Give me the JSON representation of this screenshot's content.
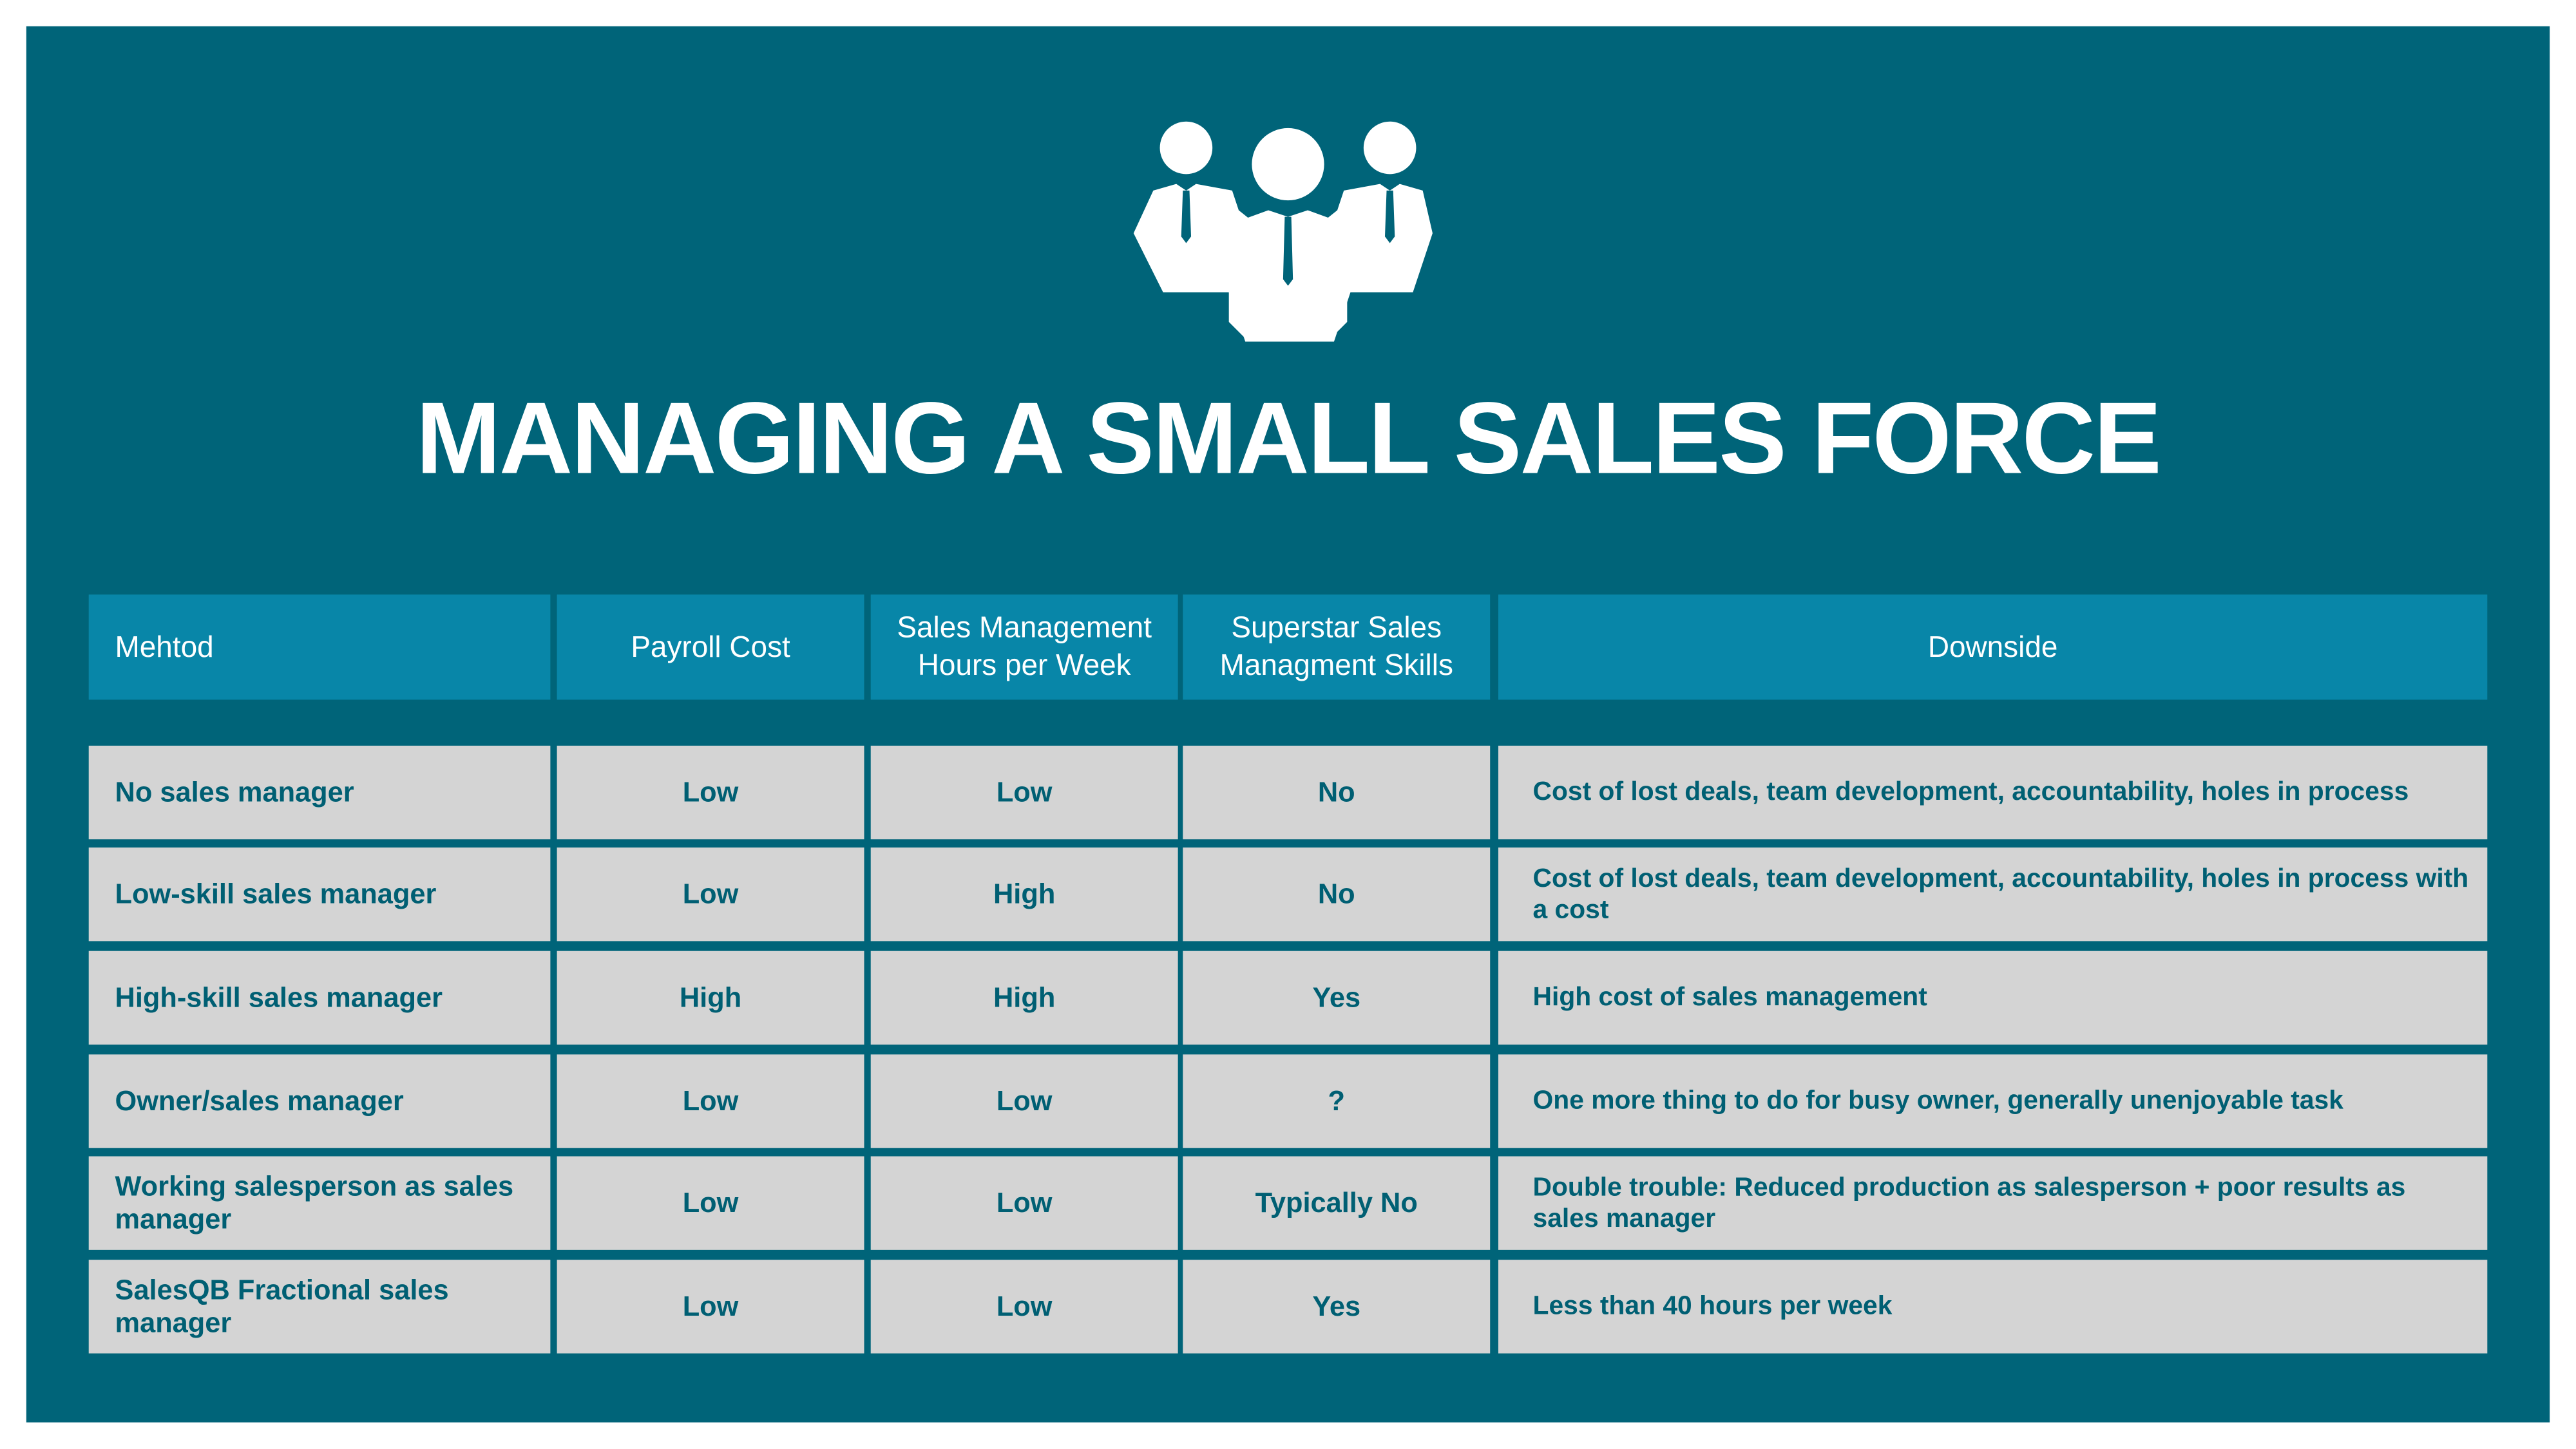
{
  "title": "MANAGING A SMALL SALES FORCE",
  "colors": {
    "background": "#006479",
    "header": "#0886A8",
    "cell": "#D4D4D4",
    "text": "#005F73"
  },
  "icon": "business-team-icon",
  "table": {
    "headers": [
      "Mehtod",
      "Payroll Cost",
      "Sales Management Hours per Week",
      "Superstar Sales Managment Skills",
      "Downside"
    ],
    "rows": [
      [
        "No sales manager",
        "Low",
        "Low",
        "No",
        "Cost of lost deals, team development, accountability, holes in process"
      ],
      [
        "Low-skill sales manager",
        "Low",
        "High",
        "No",
        "Cost of lost deals, team development, accountability, holes in process with a cost"
      ],
      [
        "High-skill sales manager",
        "High",
        "High",
        "Yes",
        "High cost of sales management"
      ],
      [
        "Owner/sales manager",
        "Low",
        "Low",
        "?",
        "One more thing to do for busy owner, generally unenjoyable task"
      ],
      [
        "Working salesperson as sales manager",
        "Low",
        "Low",
        "Typically No",
        "Double trouble: Reduced production as salesperson + poor results as sales manager"
      ],
      [
        "SalesQB Fractional sales manager",
        "Low",
        "Low",
        "Yes",
        "Less than 40 hours per week"
      ]
    ]
  }
}
